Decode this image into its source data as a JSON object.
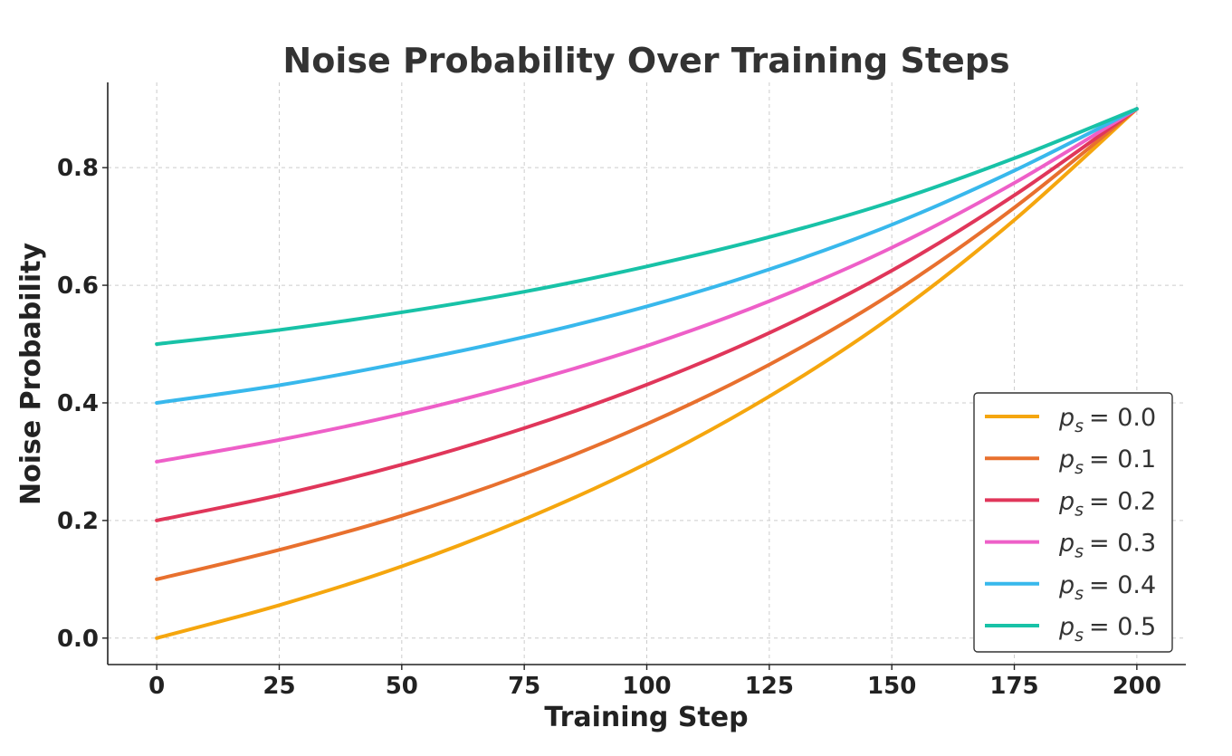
{
  "chart_data": {
    "type": "line",
    "title": "Noise Probability Over Training Steps",
    "xlabel": "Training Step",
    "ylabel": "Noise Probability",
    "xlim": [
      -10,
      210
    ],
    "ylim": [
      -0.045,
      0.945
    ],
    "xticks": [
      0,
      25,
      50,
      75,
      100,
      125,
      150,
      175,
      200
    ],
    "xtick_labels": [
      "0",
      "25",
      "50",
      "75",
      "100",
      "125",
      "150",
      "175",
      "200"
    ],
    "yticks": [
      0.0,
      0.2,
      0.4,
      0.6,
      0.8
    ],
    "ytick_labels": [
      "0.0",
      "0.2",
      "0.4",
      "0.6",
      "0.8"
    ],
    "grid": true,
    "legend_position": "lower-right",
    "x": [
      0,
      25,
      50,
      75,
      100,
      125,
      150,
      175,
      200
    ],
    "series": [
      {
        "name_var": "p",
        "name_sub": "s",
        "name_value": "= 0.0",
        "color": "#F5A60E",
        "values": [
          0.0,
          0.056,
          0.122,
          0.202,
          0.297,
          0.411,
          0.547,
          0.711,
          0.9
        ]
      },
      {
        "name_var": "p",
        "name_sub": "s",
        "name_value": "= 0.1",
        "color": "#E8702E",
        "values": [
          0.1,
          0.15,
          0.208,
          0.279,
          0.364,
          0.465,
          0.586,
          0.732,
          0.9
        ]
      },
      {
        "name_var": "p",
        "name_sub": "s",
        "name_value": "= 0.2",
        "color": "#E0365A",
        "values": [
          0.2,
          0.243,
          0.295,
          0.357,
          0.431,
          0.519,
          0.625,
          0.753,
          0.9
        ]
      },
      {
        "name_var": "p",
        "name_sub": "s",
        "name_value": "= 0.3",
        "color": "#EE5FC8",
        "values": [
          0.3,
          0.337,
          0.381,
          0.434,
          0.497,
          0.573,
          0.664,
          0.774,
          0.9
        ]
      },
      {
        "name_var": "p",
        "name_sub": "s",
        "name_value": "= 0.4",
        "color": "#38B8EC",
        "values": [
          0.4,
          0.43,
          0.468,
          0.512,
          0.564,
          0.627,
          0.703,
          0.795,
          0.9
        ]
      },
      {
        "name_var": "p",
        "name_sub": "s",
        "name_value": "= 0.5",
        "color": "#18C2A7",
        "values": [
          0.5,
          0.524,
          0.554,
          0.589,
          0.632,
          0.682,
          0.742,
          0.816,
          0.9
        ]
      }
    ]
  }
}
